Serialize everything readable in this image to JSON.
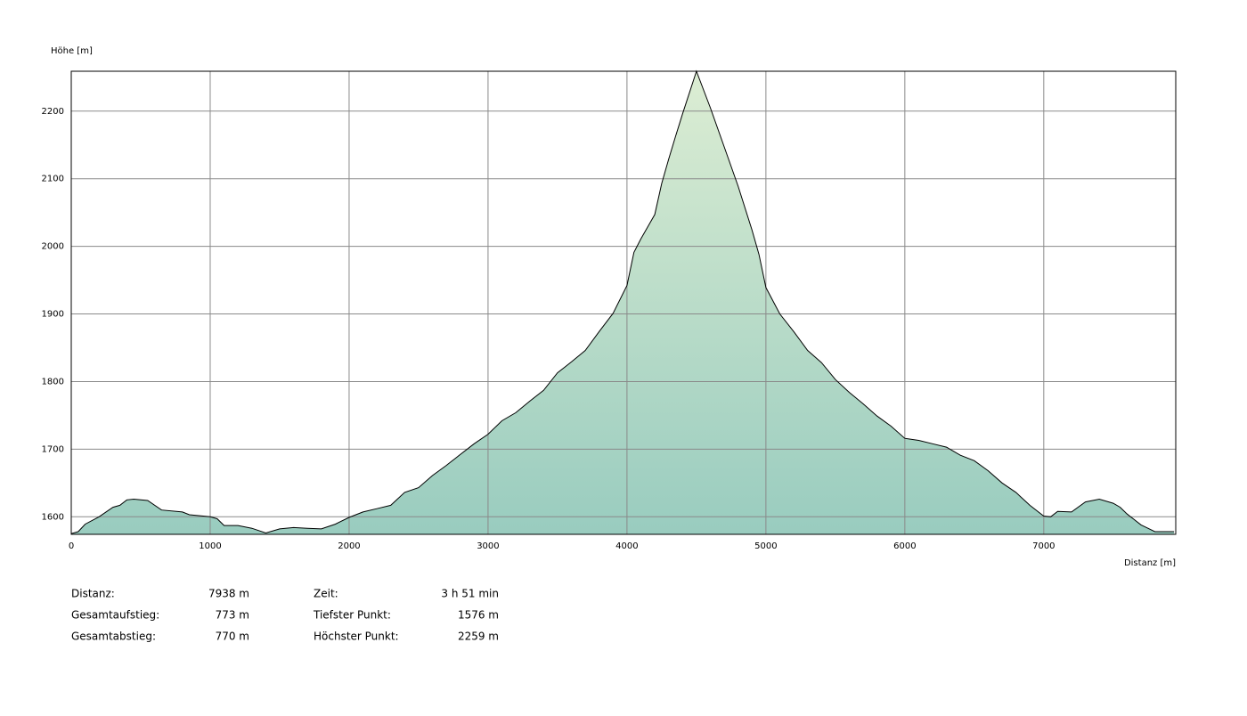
{
  "chart_data": {
    "type": "area",
    "y_label": "Höhe [m]",
    "x_label": "Distanz [m]",
    "x": [
      0,
      50,
      100,
      200,
      300,
      350,
      400,
      450,
      550,
      650,
      800,
      850,
      1000,
      1050,
      1100,
      1200,
      1300,
      1400,
      1500,
      1600,
      1700,
      1800,
      1900,
      2000,
      2100,
      2200,
      2300,
      2400,
      2500,
      2600,
      2700,
      2800,
      2900,
      3000,
      3100,
      3200,
      3300,
      3400,
      3500,
      3600,
      3700,
      3800,
      3900,
      4000,
      4050,
      4100,
      4200,
      4250,
      4300,
      4350,
      4400,
      4500,
      4600,
      4700,
      4800,
      4900,
      4950,
      5000,
      5100,
      5200,
      5300,
      5400,
      5500,
      5600,
      5700,
      5800,
      5900,
      6000,
      6100,
      6200,
      6300,
      6400,
      6500,
      6600,
      6700,
      6800,
      6900,
      7000,
      7050,
      7100,
      7200,
      7300,
      7400,
      7500,
      7550,
      7600,
      7700,
      7750,
      7800,
      7938
    ],
    "values": [
      1575,
      1578,
      1589,
      1600,
      1614,
      1617,
      1625,
      1626,
      1624,
      1610,
      1607,
      1603,
      1600,
      1597,
      1587,
      1587,
      1583,
      1576,
      1582,
      1584,
      1583,
      1582,
      1589,
      1599,
      1607,
      1612,
      1617,
      1636,
      1643,
      1661,
      1676,
      1692,
      1708,
      1722,
      1742,
      1754,
      1771,
      1787,
      1813,
      1829,
      1846,
      1874,
      1901,
      1942,
      1991,
      2011,
      2047,
      2093,
      2129,
      2163,
      2196,
      2259,
      2205,
      2147,
      2089,
      2024,
      1988,
      1939,
      1900,
      1874,
      1846,
      1828,
      1803,
      1784,
      1767,
      1749,
      1734,
      1716,
      1713,
      1708,
      1703,
      1691,
      1683,
      1668,
      1650,
      1636,
      1617,
      1601,
      1600,
      1608,
      1607,
      1622,
      1626,
      1620,
      1614,
      1604,
      1588,
      1583,
      1578,
      1578
    ],
    "line_color": "#000000",
    "fill_colors": [
      "#dcedd3",
      "#99ccbf"
    ],
    "xlim": [
      0,
      7950
    ],
    "ylim": [
      1574,
      2259
    ],
    "xticks": [
      0,
      1000,
      2000,
      3000,
      4000,
      5000,
      6000,
      7000
    ],
    "yticks": [
      1600,
      1700,
      1800,
      1900,
      2000,
      2100,
      2200
    ],
    "grid": true,
    "stats": [
      {
        "label": "Distanz:",
        "value": "7938 m"
      },
      {
        "label": "Gesamtaufstieg:",
        "value": "773 m"
      },
      {
        "label": "Gesamtabstieg:",
        "value": "770 m"
      },
      {
        "label": "Zeit:",
        "value": "3 h 51 min"
      },
      {
        "label": "Tiefster Punkt:",
        "value": "1576 m"
      },
      {
        "label": "Höchster Punkt:",
        "value": "2259 m"
      }
    ]
  }
}
